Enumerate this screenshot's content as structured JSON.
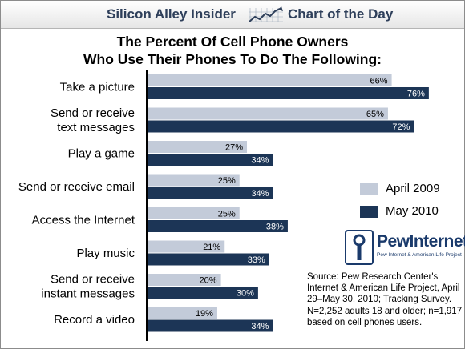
{
  "header": {
    "brand": "Silicon Alley Insider",
    "section": "Chart of the Day"
  },
  "chart_data": {
    "type": "bar",
    "orientation": "horizontal",
    "title": [
      "The Percent Of Cell Phone Owners",
      "Who Use Their Phones To Do The Following:"
    ],
    "categories": [
      [
        "Take a picture"
      ],
      [
        "Send or receive",
        "text messages"
      ],
      [
        "Play a game"
      ],
      [
        "Send or receive email"
      ],
      [
        "Access the Internet"
      ],
      [
        "Play music"
      ],
      [
        "Send or receive",
        "instant messages"
      ],
      [
        "Record a video"
      ]
    ],
    "series": [
      {
        "name": "April 2009",
        "values": [
          66,
          65,
          27,
          25,
          25,
          21,
          20,
          19
        ],
        "color": "#c3cbd9"
      },
      {
        "name": "May 2010",
        "values": [
          76,
          72,
          34,
          34,
          38,
          33,
          30,
          34
        ],
        "color": "#1c3556"
      }
    ],
    "value_suffix": "%",
    "xlim": [
      0,
      80
    ],
    "legend_position": "right",
    "grid": false
  },
  "logo": {
    "text": "PewInternet",
    "sub": "Pew Internet & American Life Project"
  },
  "source": "Source: Pew Research Center's Internet & American Life Project, April 29–May 30, 2010; Tracking Survey. N=2,252 adults 18 and older; n=1,917 based on cell phones users."
}
